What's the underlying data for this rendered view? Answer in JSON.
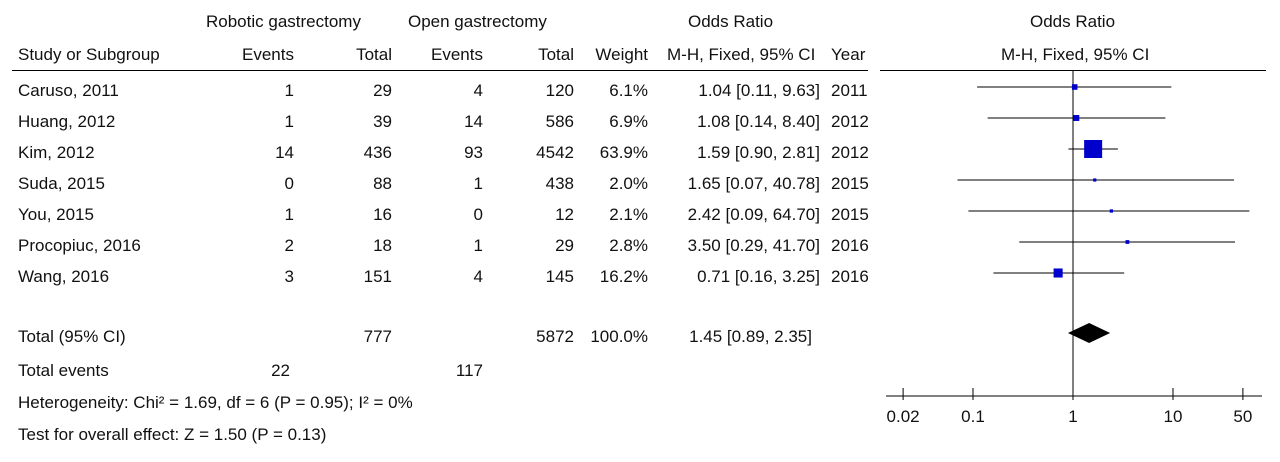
{
  "header": {
    "group1": "Robotic gastrectomy",
    "group2": "Open gastrectomy",
    "or_col": "Odds Ratio",
    "or_plot": "Odds Ratio",
    "study_col": "Study or Subgroup",
    "events1": "Events",
    "total1": "Total",
    "events2": "Events",
    "total2": "Total",
    "weight": "Weight",
    "method": "M-H, Fixed, 95% CI",
    "year": "Year",
    "method_plot": "M-H, Fixed, 95% CI"
  },
  "rows": [
    {
      "study": "Caruso, 2011",
      "e1": "1",
      "t1": "29",
      "e2": "4",
      "t2": "120",
      "weight": "6.1%",
      "ci": "1.04 [0.11, 9.63]",
      "year": "2011"
    },
    {
      "study": "Huang, 2012",
      "e1": "1",
      "t1": "39",
      "e2": "14",
      "t2": "586",
      "weight": "6.9%",
      "ci": "1.08 [0.14, 8.40]",
      "year": "2012"
    },
    {
      "study": "Kim, 2012",
      "e1": "14",
      "t1": "436",
      "e2": "93",
      "t2": "4542",
      "weight": "63.9%",
      "ci": "1.59 [0.90, 2.81]",
      "year": "2012"
    },
    {
      "study": "Suda, 2015",
      "e1": "0",
      "t1": "88",
      "e2": "1",
      "t2": "438",
      "weight": "2.0%",
      "ci": "1.65 [0.07, 40.78]",
      "year": "2015"
    },
    {
      "study": "You, 2015",
      "e1": "1",
      "t1": "16",
      "e2": "0",
      "t2": "12",
      "weight": "2.1%",
      "ci": "2.42 [0.09, 64.70]",
      "year": "2015"
    },
    {
      "study": "Procopiuc, 2016",
      "e1": "2",
      "t1": "18",
      "e2": "1",
      "t2": "29",
      "weight": "2.8%",
      "ci": "3.50 [0.29, 41.70]",
      "year": "2016"
    },
    {
      "study": "Wang, 2016",
      "e1": "3",
      "t1": "151",
      "e2": "4",
      "t2": "145",
      "weight": "16.2%",
      "ci": "0.71 [0.16, 3.25]",
      "year": "2016"
    }
  ],
  "total": {
    "label": "Total (95% CI)",
    "t1": "777",
    "t2": "5872",
    "weight": "100.0%",
    "ci": "1.45 [0.89, 2.35]"
  },
  "total_events": {
    "label": "Total events",
    "e1": "22",
    "e2": "117"
  },
  "heterogeneity": "Heterogeneity: Chi² = 1.69, df = 6 (P = 0.95); I² = 0%",
  "overall_effect": "Test for overall effect: Z = 1.50 (P = 0.13)",
  "chart_data": {
    "type": "forest",
    "scale": "log",
    "xlim": [
      0.02,
      50
    ],
    "ticks": [
      {
        "value": 0.02,
        "label": "0.02"
      },
      {
        "value": 0.1,
        "label": "0.1"
      },
      {
        "value": 1,
        "label": "1"
      },
      {
        "value": 10,
        "label": "10"
      },
      {
        "value": 50,
        "label": "50"
      }
    ],
    "reference_line": 1,
    "marker_color": "#0000cc",
    "studies": [
      {
        "name": "Caruso, 2011",
        "or": 1.04,
        "lo": 0.11,
        "hi": 9.63,
        "weight": 6.1
      },
      {
        "name": "Huang, 2012",
        "or": 1.08,
        "lo": 0.14,
        "hi": 8.4,
        "weight": 6.9
      },
      {
        "name": "Kim, 2012",
        "or": 1.59,
        "lo": 0.9,
        "hi": 2.81,
        "weight": 63.9
      },
      {
        "name": "Suda, 2015",
        "or": 1.65,
        "lo": 0.07,
        "hi": 40.78,
        "weight": 2.0
      },
      {
        "name": "You, 2015",
        "or": 2.42,
        "lo": 0.09,
        "hi": 64.7,
        "weight": 2.1
      },
      {
        "name": "Procopiuc, 2016",
        "or": 3.5,
        "lo": 0.29,
        "hi": 41.7,
        "weight": 2.8
      },
      {
        "name": "Wang, 2016",
        "or": 0.71,
        "lo": 0.16,
        "hi": 3.25,
        "weight": 16.2
      }
    ],
    "pooled": {
      "or": 1.45,
      "lo": 0.89,
      "hi": 2.35
    }
  }
}
